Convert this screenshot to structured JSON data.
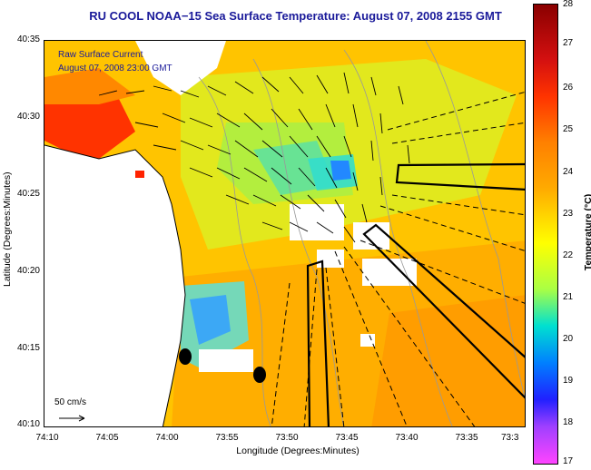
{
  "title": "RU COOL  NOAA−15  Sea Surface Temperature:  August 07, 2008 2155 GMT",
  "legend": {
    "title": "Raw Surface Current",
    "time": "August 07, 2008 23:00 GMT",
    "scale_label": "50 cm/s"
  },
  "axes": {
    "xlabel": "Longitude (Degrees:Minutes)",
    "ylabel": "Latitude (Degrees:Minutes)",
    "xticks": [
      "74:10",
      "74:05",
      "74:00",
      "73:55",
      "73:50",
      "73:45",
      "73:40",
      "73:35",
      "73:3"
    ],
    "yticks": [
      "40:35",
      "40:30",
      "40:25",
      "40:20",
      "40:15",
      "40:10"
    ]
  },
  "colorbar": {
    "label": "Temperature (°C)",
    "ticks": [
      "28",
      "27",
      "26",
      "25",
      "24",
      "23",
      "22",
      "21",
      "20",
      "19",
      "18",
      "17"
    ],
    "min": 17,
    "max": 28
  },
  "colors": {
    "title": "#1a1a9a",
    "land": "#ffffff",
    "warm": "#ff8800",
    "mid": "#ffcc00",
    "cool": "#99ff44",
    "cold": "#00d4d4"
  }
}
